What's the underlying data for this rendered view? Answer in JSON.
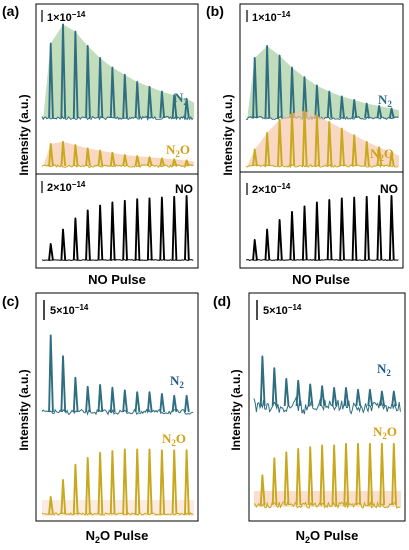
{
  "colors": {
    "n2_line": "#2e6e80",
    "n2_fill": "#a8cfa0",
    "n2o_line": "#c8a81c",
    "n2o_fill": "#f5c7a8",
    "n2o_fill_d": "#f2a27a",
    "no_line": "#000000",
    "n2_label_c": "#1f5a8a",
    "n2o_label": "#d4a017"
  },
  "panels": [
    {
      "label": "(a)",
      "ylabel": "Intensity (a.u.)",
      "xlabel": "NO Pulse",
      "scale_top": "1×10",
      "scale_top_exp": "−14",
      "scale_bottom": "2×10",
      "scale_bottom_exp": "−14",
      "n2_name": "N",
      "n2_sub": "2",
      "n2o_name": "N",
      "n2o_sub": "2",
      "n2o_tail": "O",
      "no_name": "NO"
    },
    {
      "label": "(b)",
      "ylabel": "Intensity (a.u.)",
      "xlabel": "NO Pulse",
      "scale_top": "1×10",
      "scale_top_exp": "−14",
      "scale_bottom": "2×10",
      "scale_bottom_exp": "−14",
      "n2_name": "N",
      "n2_sub": "2",
      "n2o_name": "N",
      "n2o_sub": "2",
      "n2o_tail": "O",
      "no_name": "NO"
    },
    {
      "label": "(c)",
      "ylabel": "Intensity (a.u.)",
      "xlabel_main": "N",
      "xlabel_sub": "2",
      "xlabel_tail": "O Pulse",
      "scale_top": "5×10",
      "scale_top_exp": "−14",
      "n2_name": "N",
      "n2_sub": "2",
      "n2o_name": "N",
      "n2o_sub": "2",
      "n2o_tail": "O"
    },
    {
      "label": "(d)",
      "ylabel": "Intensity (a.u.)",
      "xlabel_main": "N",
      "xlabel_sub": "2",
      "xlabel_tail": "O Pulse",
      "scale_top": "5×10",
      "scale_top_exp": "−14",
      "n2_name": "N",
      "n2_sub": "2",
      "n2o_name": "N",
      "n2o_sub": "2",
      "n2o_tail": "O"
    }
  ],
  "chart_data": [
    {
      "type": "line",
      "panel": "a",
      "pulses": 12,
      "series": [
        {
          "name": "N2",
          "peak_heights": [
            0.62,
            0.78,
            0.72,
            0.6,
            0.5,
            0.42,
            0.36,
            0.3,
            0.26,
            0.22,
            0.19,
            0.16
          ],
          "envelope": "fast-rise-slow-decay"
        },
        {
          "name": "N2O",
          "peak_heights": [
            0.2,
            0.22,
            0.19,
            0.16,
            0.14,
            0.12,
            0.1,
            0.09,
            0.08,
            0.07,
            0.06,
            0.05
          ],
          "envelope": "decay"
        },
        {
          "name": "NO",
          "peak_heights": [
            0.2,
            0.38,
            0.52,
            0.62,
            0.68,
            0.72,
            0.74,
            0.76,
            0.77,
            0.78,
            0.79,
            0.8
          ]
        }
      ]
    },
    {
      "type": "line",
      "panel": "b",
      "pulses": 12,
      "series": [
        {
          "name": "N2",
          "peak_heights": [
            0.5,
            0.6,
            0.52,
            0.42,
            0.34,
            0.27,
            0.22,
            0.18,
            0.15,
            0.12,
            0.1,
            0.08
          ],
          "envelope": "decay"
        },
        {
          "name": "N2O",
          "peak_heights": [
            0.15,
            0.3,
            0.42,
            0.48,
            0.5,
            0.46,
            0.4,
            0.34,
            0.28,
            0.22,
            0.17,
            0.12
          ],
          "envelope": "rise-and-fall"
        },
        {
          "name": "NO",
          "peak_heights": [
            0.25,
            0.38,
            0.5,
            0.6,
            0.67,
            0.72,
            0.75,
            0.77,
            0.78,
            0.79,
            0.8,
            0.8
          ]
        }
      ]
    },
    {
      "type": "line",
      "panel": "c",
      "pulses": 12,
      "series": [
        {
          "name": "N2",
          "peak_heights": [
            0.85,
            0.62,
            0.38,
            0.28,
            0.3,
            0.27,
            0.24,
            0.22,
            0.22,
            0.2,
            0.18,
            0.18
          ]
        },
        {
          "name": "N2O",
          "peak_heights": [
            0.2,
            0.4,
            0.58,
            0.66,
            0.72,
            0.74,
            0.76,
            0.76,
            0.76,
            0.75,
            0.75,
            0.75
          ]
        }
      ]
    },
    {
      "type": "line",
      "panel": "d",
      "pulses": 12,
      "series": [
        {
          "name": "N2",
          "peak_heights": [
            0.55,
            0.42,
            0.3,
            0.28,
            0.24,
            0.22,
            0.2,
            0.2,
            0.18,
            0.18,
            0.16,
            0.16
          ],
          "noisy": true
        },
        {
          "name": "N2O",
          "peak_heights": [
            0.35,
            0.55,
            0.62,
            0.66,
            0.68,
            0.7,
            0.7,
            0.72,
            0.72,
            0.72,
            0.72,
            0.72
          ]
        }
      ]
    }
  ]
}
